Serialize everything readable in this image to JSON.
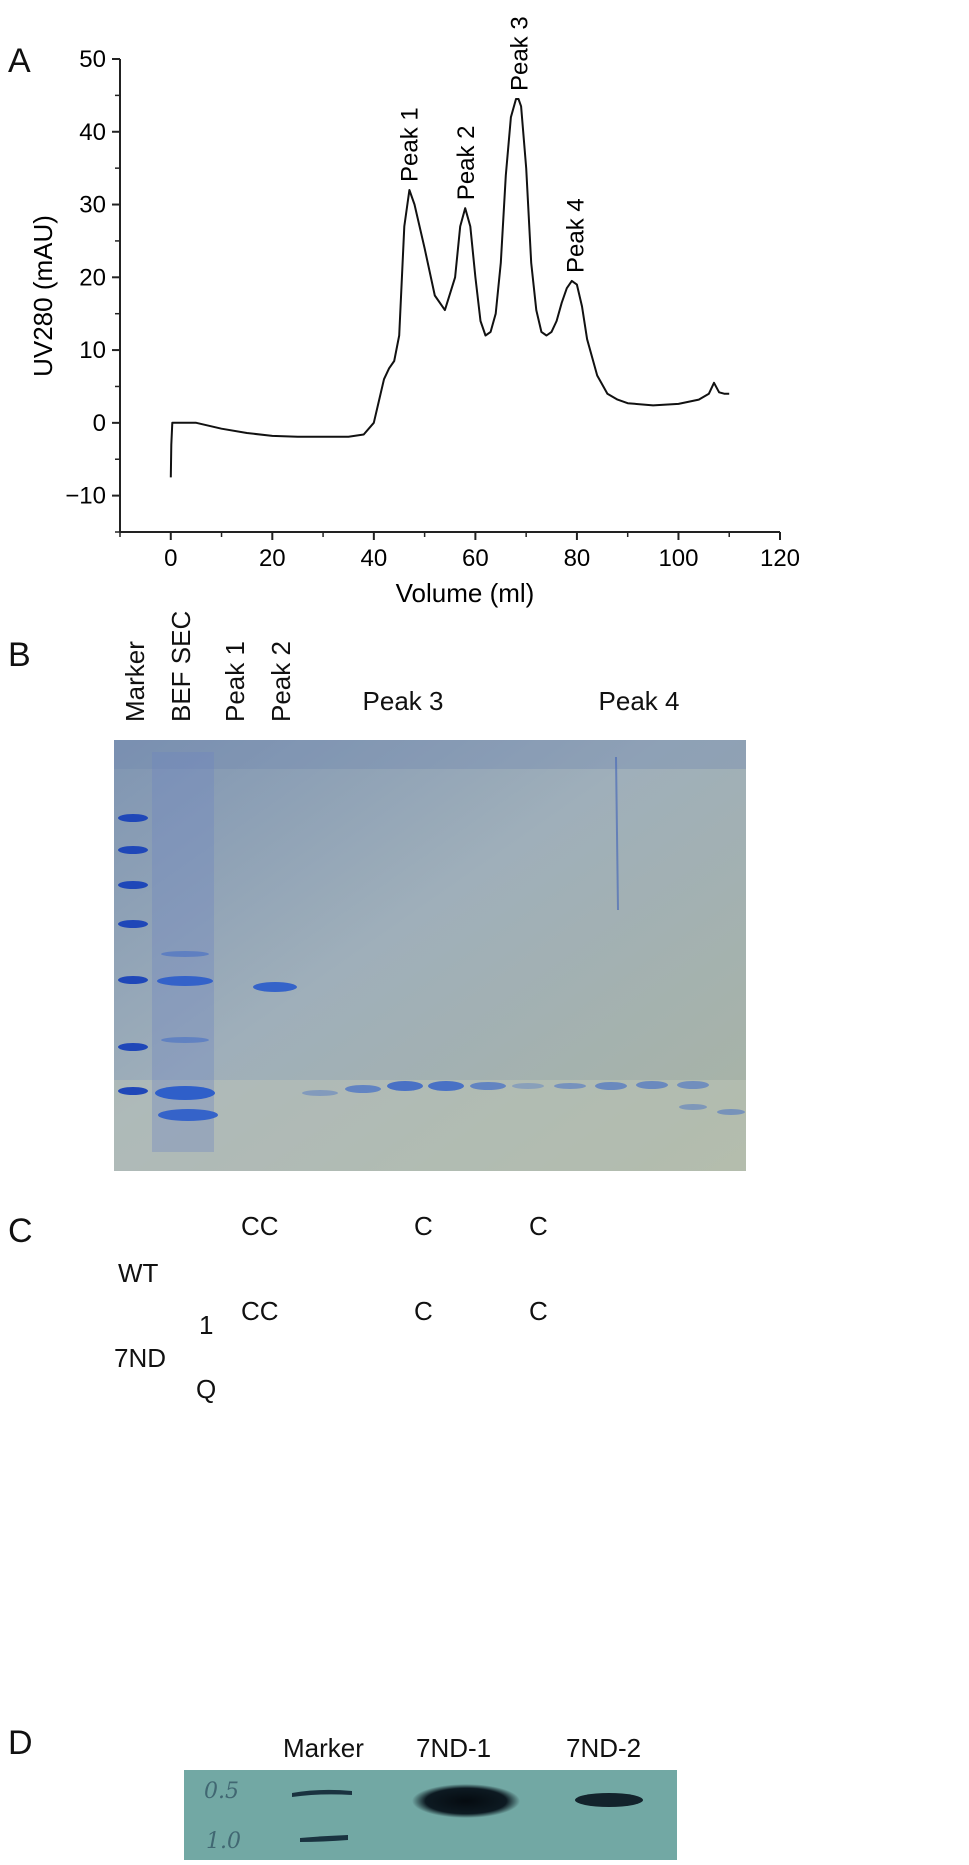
{
  "panels": {
    "a": "A",
    "b": "B",
    "c": "C",
    "d": "D"
  },
  "chart_data": {
    "type": "line",
    "title": "",
    "xlabel": "Volume (ml)",
    "ylabel": "UV280 (mAU)",
    "xlim": [
      -10,
      120
    ],
    "ylim": [
      -15,
      50
    ],
    "xticks": [
      0,
      20,
      40,
      60,
      80,
      100,
      120
    ],
    "yticks": [
      50,
      40,
      30,
      20,
      10,
      0,
      -10
    ],
    "ytick_labels": [
      "50",
      "40",
      "30",
      "20",
      "10",
      "0",
      "−10"
    ],
    "grid": false,
    "series": [
      {
        "x": [
          0,
          0.1,
          0.3,
          2,
          5,
          10,
          15,
          20,
          25,
          30,
          35,
          38,
          40,
          41,
          42,
          43,
          44,
          45,
          46,
          47,
          48,
          50,
          52,
          54,
          56,
          57,
          58,
          59,
          60,
          61,
          62,
          63,
          64,
          65,
          66,
          67,
          68,
          68.5,
          69,
          70,
          71,
          72,
          73,
          74,
          75,
          76,
          77,
          78,
          79,
          80,
          81,
          82,
          84,
          86,
          88,
          90,
          95,
          100,
          104,
          106,
          107,
          108,
          109,
          110
        ],
        "y": [
          -7.5,
          -3,
          0,
          0,
          0,
          -0.8,
          -1.4,
          -1.8,
          -1.9,
          -1.9,
          -1.9,
          -1.6,
          0,
          3,
          6,
          7.5,
          8.5,
          12,
          27,
          32,
          30,
          24,
          17.5,
          15.5,
          20,
          27,
          29.5,
          27,
          20,
          14,
          12,
          12.5,
          15,
          22,
          34,
          42,
          44.5,
          44.5,
          43.5,
          35,
          22,
          15.5,
          12.5,
          12,
          12.5,
          14,
          16.5,
          18.5,
          19.5,
          19,
          16,
          11.5,
          6.5,
          4,
          3.2,
          2.7,
          2.4,
          2.6,
          3.2,
          4,
          5.5,
          4.2,
          4,
          4
        ]
      }
    ],
    "annotations": [
      {
        "text": "Peak 1",
        "x": 46.8,
        "y": 32
      },
      {
        "text": "Peak 2",
        "x": 58,
        "y": 29.5
      },
      {
        "text": "Peak 3",
        "x": 68.5,
        "y": 44.5
      },
      {
        "text": "Peak 4",
        "x": 79.5,
        "y": 19.5
      }
    ]
  },
  "gel_b": {
    "lane_labels": [
      "Marker",
      "BEF SEC",
      "Peak 1",
      "Peak 2"
    ],
    "group_labels": [
      "Peak 3",
      "Peak 4"
    ],
    "colors": {
      "background": "#9aa8b4",
      "band": "#2f5fc9",
      "band_strong": "#1f47b8"
    }
  },
  "diagram_c": {
    "rows": [
      {
        "name": "WT",
        "top_labels": [
          "CC",
          "C",
          "C"
        ]
      },
      {
        "name": "7ND",
        "top_labels": [
          "1",
          "CC",
          "C",
          "C"
        ],
        "bottom_label": "Q"
      }
    ]
  },
  "gel_d": {
    "lane_labels": [
      "Marker",
      "7ND-1",
      "7ND-2"
    ],
    "handwritten": [
      "0.5",
      "1.0"
    ],
    "colors": {
      "background": "#7fb1ad",
      "band": "#0d1a22"
    }
  }
}
